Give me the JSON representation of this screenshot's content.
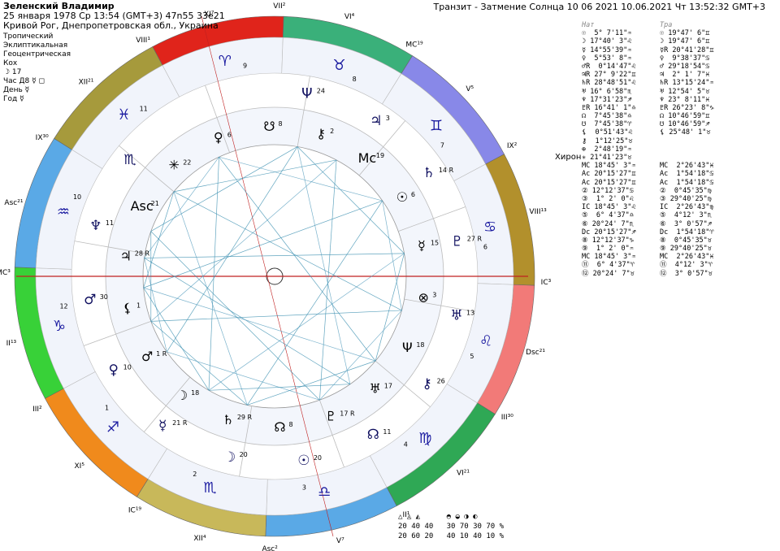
{
  "header": {
    "name": "Зеленский Владимир",
    "line2": "25 января 1978  Ср  13:54 (GMT+3) 47n55  33e21",
    "line3": "Кривой Рог, Днепропетровская обл., Украина",
    "transit": "Транзит - Затмение Солнца 10 06 2021 10.06.2021  Чт 13:52:32 GMT+3"
  },
  "meta": {
    "lines": [
      "Тропический",
      "Эклиптикальная",
      "Геоцентрическая",
      "Кох",
      "☽ 17",
      "Час Д8 ☿ ◻",
      "День ☿",
      "Год ☿"
    ]
  },
  "chart_data": {
    "type": "natal-transit-wheel",
    "zodiac_ring": [
      {
        "sign": "♈",
        "color": "#e0241b"
      },
      {
        "sign": "♉",
        "color": "#3ab07a"
      },
      {
        "sign": "♊",
        "color": "#8888e8"
      },
      {
        "sign": "♋",
        "color": "#b2902c"
      },
      {
        "sign": "♌",
        "color": "#f27a78"
      },
      {
        "sign": "♍",
        "color": "#2fa855"
      },
      {
        "sign": "♎",
        "color": "#5aa9e6"
      },
      {
        "sign": "♏",
        "color": "#c8b85a"
      },
      {
        "sign": "♐",
        "color": "#f08a1c"
      },
      {
        "sign": "♑",
        "color": "#38d138"
      },
      {
        "sign": "♒",
        "color": "#5aa9e6"
      },
      {
        "sign": "♓",
        "color": "#a69a3c"
      }
    ],
    "outer_labels": [
      {
        "t": "XI⁷"
      },
      {
        "t": "VII²"
      },
      {
        "t": "VI⁴"
      },
      {
        "t": "MC¹⁹"
      },
      {
        "t": "V⁵"
      },
      {
        "t": "IX²"
      },
      {
        "t": "VIII¹³"
      },
      {
        "t": "IC³"
      },
      {
        "t": "Dsc²¹"
      },
      {
        "t": "III³⁰"
      },
      {
        "t": "VI²¹"
      },
      {
        "t": "II¹"
      },
      {
        "t": "V⁷"
      },
      {
        "t": "Asc²"
      },
      {
        "t": "XII⁴"
      },
      {
        "t": "IC¹⁹"
      },
      {
        "t": "XI⁵"
      },
      {
        "t": "III²"
      },
      {
        "t": "II¹³"
      },
      {
        "t": "MC³"
      },
      {
        "t": "Asc²¹"
      },
      {
        "t": "IX³⁰"
      },
      {
        "t": "XII²¹"
      },
      {
        "t": "VIII¹"
      }
    ],
    "house_numbers": [
      "11",
      "9",
      "8",
      "7",
      "6",
      "5",
      "4",
      "3",
      "2",
      "1",
      "12",
      "10"
    ],
    "transit_planets": [
      {
        "g": "Ψ",
        "n": "24"
      },
      {
        "g": "♃",
        "n": "3"
      },
      {
        "g": "♄",
        "n": "14 R"
      },
      {
        "g": "♇",
        "n": "27 R"
      },
      {
        "g": "♅",
        "n": "13"
      },
      {
        "g": "⚷",
        "n": "26"
      },
      {
        "g": "☊",
        "n": "11"
      },
      {
        "g": "☉",
        "n": "20"
      },
      {
        "g": "☽",
        "n": "20"
      },
      {
        "g": "☿",
        "n": "21 R"
      },
      {
        "g": "♀",
        "n": "10"
      },
      {
        "g": "♂",
        "n": "30"
      },
      {
        "g": "♆",
        "n": "11"
      },
      {
        "g": "♏",
        "n": ""
      }
    ],
    "natal_planets": [
      {
        "g": "☋",
        "n": "8"
      },
      {
        "g": "⚷",
        "n": "2"
      },
      {
        "g": "Mc",
        "n": "19"
      },
      {
        "g": "☉",
        "n": "6"
      },
      {
        "g": "☿",
        "n": "15"
      },
      {
        "g": "⊗",
        "n": "3"
      },
      {
        "g": "Ψ",
        "n": "18"
      },
      {
        "g": "♅",
        "n": "17"
      },
      {
        "g": "♇",
        "n": "17 R"
      },
      {
        "g": "☊",
        "n": "8"
      },
      {
        "g": "♄",
        "n": "29 R"
      },
      {
        "g": "☽",
        "n": "18"
      },
      {
        "g": "♂",
        "n": "1 R"
      },
      {
        "g": "⚸",
        "n": "1"
      },
      {
        "g": "♃",
        "n": "28 R"
      },
      {
        "g": "Asc",
        "n": "21"
      },
      {
        "g": "✳",
        "n": "22"
      },
      {
        "g": "♀",
        "n": "6"
      }
    ]
  },
  "table": {
    "head": [
      "Нат",
      "Тра"
    ],
    "rows": [
      [
        "☉  5° 7'11\"♒",
        "☉ 19°47' 6\"♊"
      ],
      [
        "☽ 17°40' 3\"♌",
        "☽ 19°47' 6\"♊"
      ],
      [
        "☿ 14°55'39\"♒",
        "☿R 20°41'28\"♊"
      ],
      [
        "♀  5°53' 8\"♒",
        "♀  9°38'37\"♋"
      ],
      [
        "♂R  0°14'47\"♌",
        "♂ 29°18'54\"♋"
      ],
      [
        "♃R 27° 9'22\"♊",
        "♃  2° 1' 7\"♓"
      ],
      [
        "♄R 28°48'51\"♌",
        "♄R 13°15'24\"♒"
      ],
      [
        "♅ 16° 6'58\"♏",
        "♅ 12°54' 5\"♉"
      ],
      [
        "♆ 17°31'23\"♐",
        "♆ 23° 8'11\"♓"
      ],
      [
        "♇R 16°41' 1\"♎",
        "♇R 26°23' 8\"♑"
      ],
      [
        "☊  7°45'38\"♎",
        "☊ 10°46'59\"♊"
      ],
      [
        "☋  7°45'38\"♈",
        "☋ 10°46'59\"♐"
      ],
      [
        "⚸  0°51'43\"♌",
        "⚸ 25°48' 1\"♉"
      ],
      [
        "⚷  1°12'25\"♉",
        ""
      ],
      [
        "⊕  2°48'19\"♒",
        ""
      ],
      [
        "✳ 21°41'23\"♉",
        ""
      ],
      [
        "MC 18°45' 3\"♒",
        "MC  2°26'43\"♓"
      ],
      [
        "Ac 20°15'27\"♊",
        "Ac  1°54'18\"♋"
      ],
      [
        "Ac 20°15'27\"♊",
        "Ac  1°54'18\"♋"
      ],
      [
        "② 12°12'37\"♋",
        "②  0°45'35\"♍"
      ],
      [
        "③  1° 2' 0\"♌",
        "③ 29°40'25\"♍"
      ],
      [
        "IC 18°45' 3\"♌",
        "IC  2°26'43\"♍"
      ],
      [
        "⑤  6° 4'37\"♎",
        "⑤  4°12' 3\"♏"
      ],
      [
        "⑥ 20°24' 7\"♏",
        "⑥  3° 0'57\"♐"
      ],
      [
        "Dc 20°15'27\"♐",
        "Dc  1°54'18\"♈"
      ],
      [
        "⑧ 12°12'37\"♑",
        "⑧  0°45'35\"♉"
      ],
      [
        "⑨  1° 2' 0\"♒",
        "⑨ 29°40'25\"♉"
      ],
      [
        "MC 18°45' 3\"♒",
        "MC  2°26'43\"♓"
      ],
      [
        "⑪  6° 4'37\"♈",
        "⑪  4°12' 3\"♈"
      ],
      [
        "⑫ 20°24' 7\"♉",
        "⑫  3° 0'57\"♉"
      ]
    ]
  },
  "chiron_label": "Хирон",
  "stats": [
    "△ ◬ ◭      ◓ ◒ ◑ ◐",
    "20 40 40   30 70 30 70 %",
    "20 60 20   40 10 40 10 %"
  ]
}
